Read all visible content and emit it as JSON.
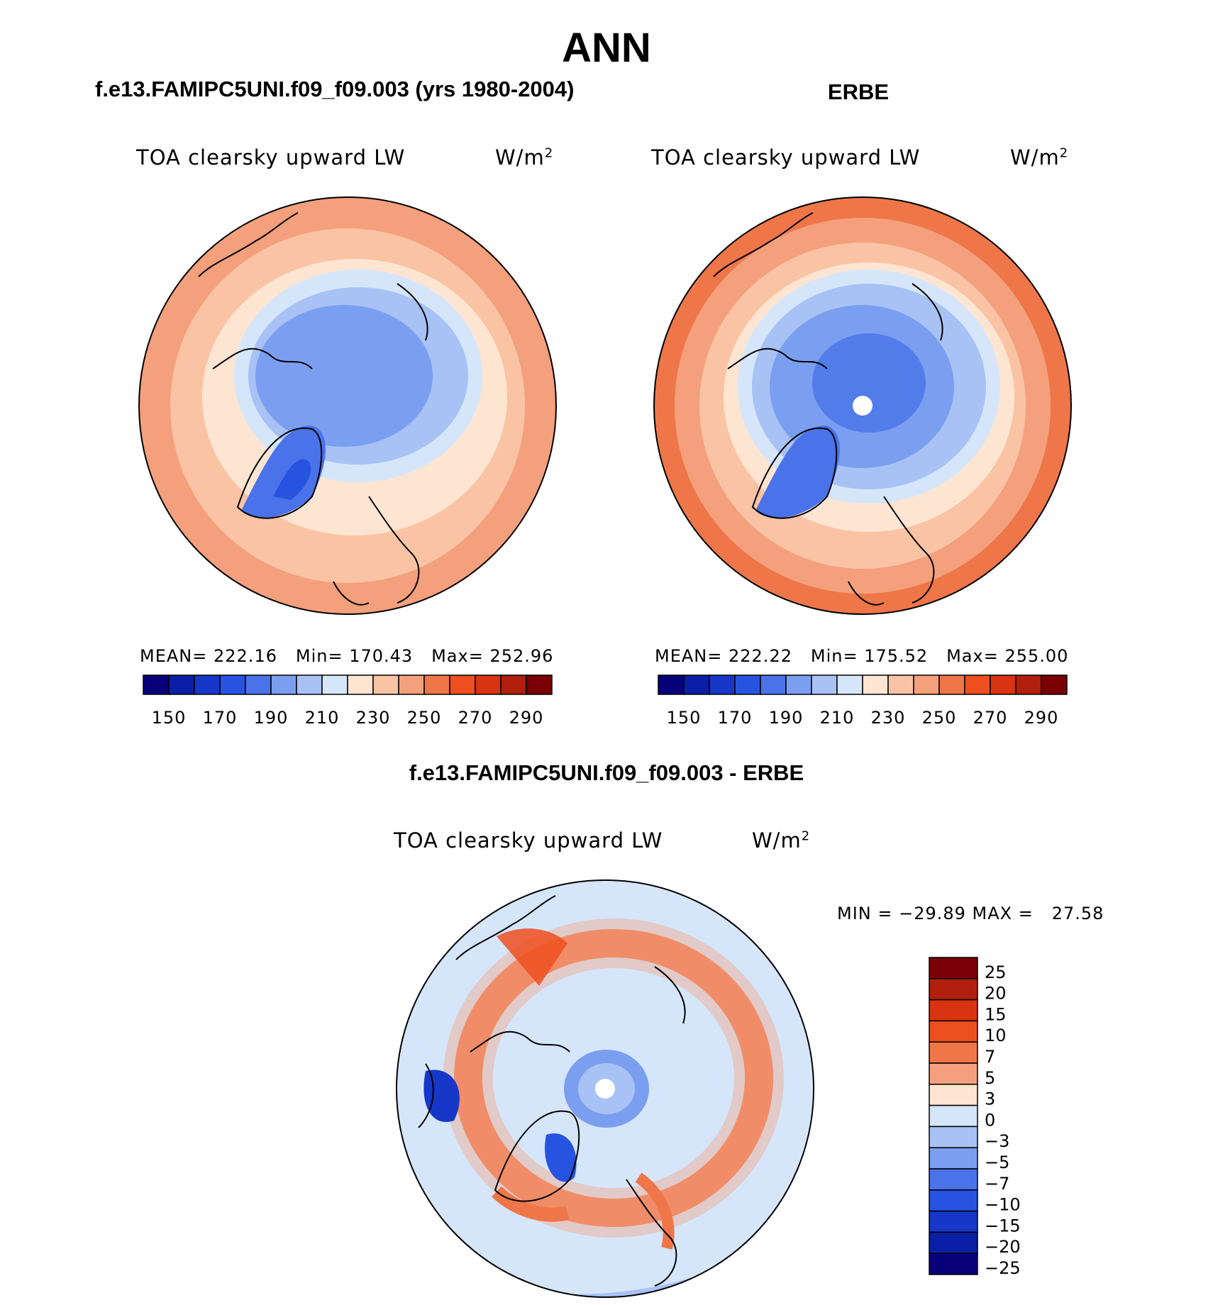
{
  "main_title": "ANN",
  "panels": [
    {
      "id": "model",
      "heading": "f.e13.FAMIPC5UNI.f09_f09.003 (yrs 1980-2004)",
      "variable": "TOA clearsky upward LW",
      "units_base": "W/m",
      "units_exp": "2",
      "stats": {
        "mean_label": "MEAN=",
        "mean": "222.16",
        "min_label": "Min=",
        "min": "170.43",
        "max_label": "Max=",
        "max": "252.96"
      }
    },
    {
      "id": "obs",
      "heading": "ERBE",
      "variable": "TOA clearsky upward LW",
      "units_base": "W/m",
      "units_exp": "2",
      "stats": {
        "mean_label": "MEAN=",
        "mean": "222.22",
        "min_label": "Min=",
        "min": "175.52",
        "max_label": "Max=",
        "max": "255.00"
      }
    }
  ],
  "abs_colorbar": {
    "colors": [
      "#08007a",
      "#0b1fa6",
      "#1637c8",
      "#2653e0",
      "#4a73ea",
      "#7b9ff0",
      "#a8c2f5",
      "#d6e6fa",
      "#fde5d2",
      "#f9c3a4",
      "#f4a07c",
      "#ef7649",
      "#ee4f1f",
      "#d93411",
      "#b21f0c",
      "#7a0006"
    ],
    "tick_labels": [
      "150",
      "170",
      "190",
      "210",
      "230",
      "250",
      "270",
      "290"
    ]
  },
  "difference": {
    "heading": "f.e13.FAMIPC5UNI.f09_f09.003 - ERBE",
    "variable": "TOA clearsky upward LW",
    "units_base": "W/m",
    "units_exp": "2",
    "minmax": "MIN = −29.89 MAX =   27.58",
    "colors": [
      "#7a0006",
      "#b21f0c",
      "#d93411",
      "#ee4f1f",
      "#ef7649",
      "#f4a07c",
      "#fde5d2",
      "#d6e6fa",
      "#a8c2f5",
      "#7b9ff0",
      "#4a73ea",
      "#2653e0",
      "#1637c8",
      "#0b1fa6",
      "#08007a"
    ],
    "tick_labels": [
      "25",
      "20",
      "15",
      "10",
      "7",
      "5",
      "3",
      "0",
      "−3",
      "−5",
      "−7",
      "−10",
      "−15",
      "−20",
      "−25"
    ]
  }
}
